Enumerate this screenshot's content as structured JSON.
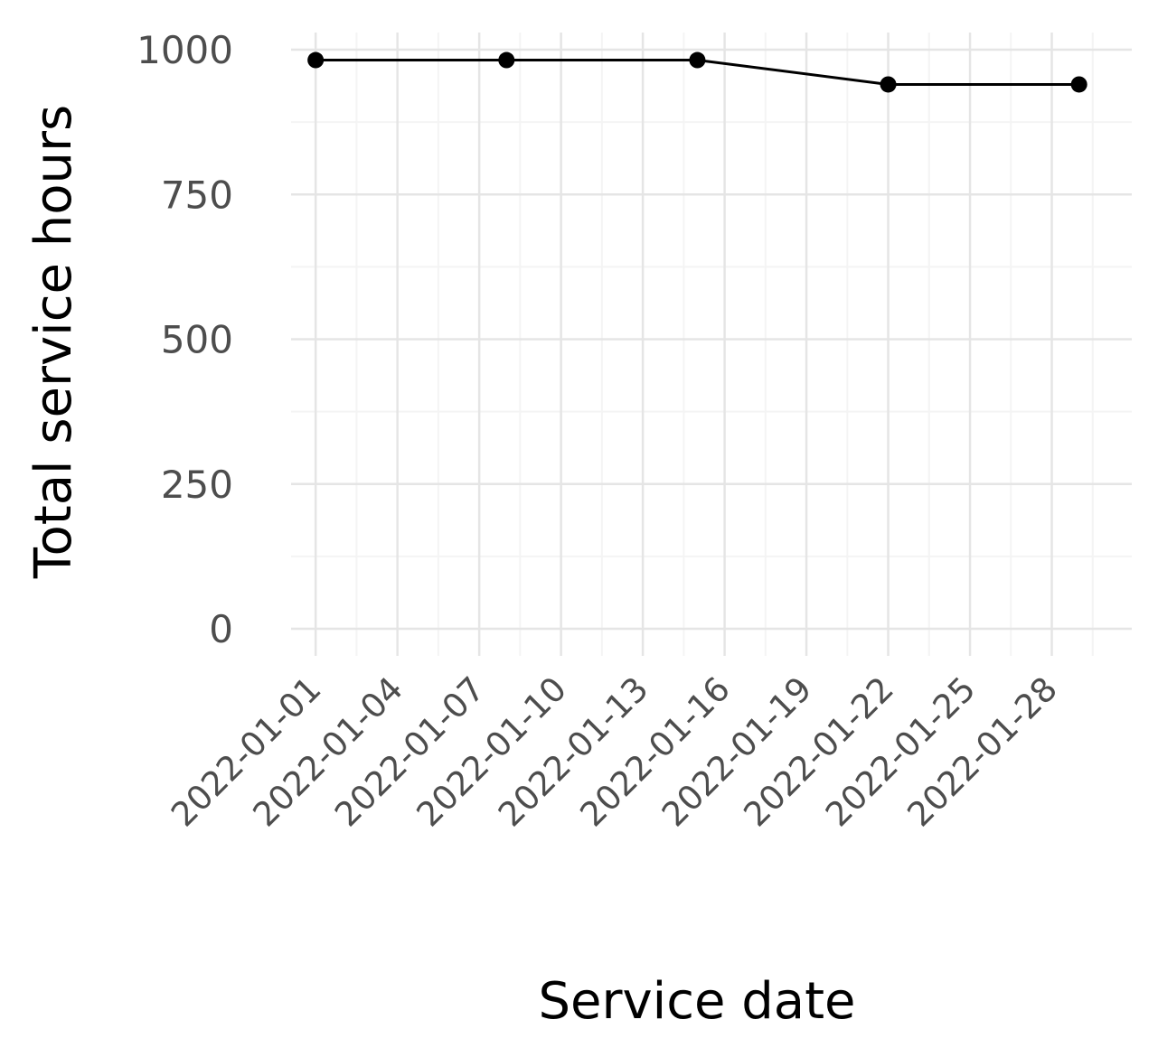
{
  "chart_data": {
    "type": "line",
    "xlabel": "Service date",
    "ylabel": "Total service hours",
    "x_tick_labels": [
      "2022-01-01",
      "2022-01-04",
      "2022-01-07",
      "2022-01-10",
      "2022-01-13",
      "2022-01-16",
      "2022-01-19",
      "2022-01-22",
      "2022-01-25",
      "2022-01-28"
    ],
    "y_tick_labels": [
      "0",
      "250",
      "500",
      "750",
      "1000"
    ],
    "y_ticks": [
      0,
      250,
      500,
      750,
      1000
    ],
    "xlim": [
      "2021-12-31",
      "2022-01-31"
    ],
    "ylim": [
      0,
      1000
    ],
    "grid": true,
    "series": [
      {
        "x": [
          "2022-01-01",
          "2022-01-08",
          "2022-01-15",
          "2022-01-22",
          "2022-01-29"
        ],
        "y": [
          982,
          982,
          982,
          940,
          940
        ],
        "color": "#000000"
      }
    ],
    "colors": {
      "grid_major": "#e5e5e5",
      "grid_minor": "#f4f4f4",
      "line": "#000000",
      "tick_text": "#4d4d4d"
    }
  }
}
